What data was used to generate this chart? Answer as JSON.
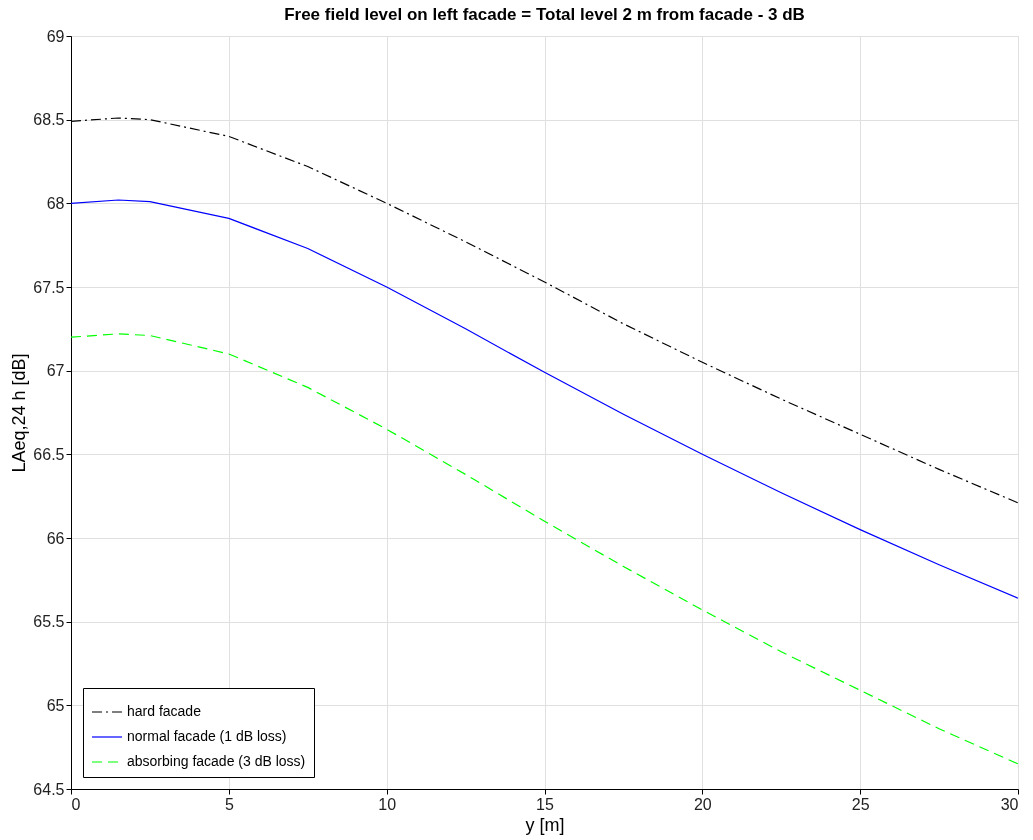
{
  "chart_data": {
    "type": "line",
    "title": "Free field level on left facade = Total level 2 m from facade - 3 dB",
    "xlabel": "y [m]",
    "ylabel": "LAeq,24 h [dB]",
    "x": [
      0,
      1.5,
      2.5,
      5,
      7.5,
      10,
      12.5,
      15,
      17.5,
      20,
      22.5,
      25,
      27.5,
      30
    ],
    "series": [
      {
        "name": "hard facade",
        "color": "#000000",
        "line_style": "dashdot",
        "values": [
          68.49,
          68.51,
          68.5,
          68.4,
          68.22,
          68.0,
          67.77,
          67.53,
          67.28,
          67.05,
          66.83,
          66.62,
          66.41,
          66.21
        ]
      },
      {
        "name": "normal facade (1 dB loss)",
        "color": "#0000ff",
        "line_style": "solid",
        "values": [
          68.0,
          68.02,
          68.01,
          67.91,
          67.73,
          67.5,
          67.25,
          66.99,
          66.74,
          66.5,
          66.27,
          66.05,
          65.84,
          65.64
        ]
      },
      {
        "name": "absorbing facade (3 dB loss)",
        "color": "#00ff00",
        "line_style": "dashed",
        "values": [
          67.2,
          67.22,
          67.21,
          67.1,
          66.9,
          66.65,
          66.38,
          66.1,
          65.83,
          65.57,
          65.32,
          65.09,
          64.86,
          64.65
        ]
      }
    ],
    "xlim": [
      0,
      30
    ],
    "xticks": [
      0,
      5,
      10,
      15,
      20,
      25,
      30
    ],
    "ylim": [
      64.5,
      69
    ],
    "yticks": [
      64.5,
      65,
      65.5,
      66,
      66.5,
      67,
      67.5,
      68,
      68.5,
      69
    ],
    "grid": true,
    "legend": "bottom left"
  }
}
